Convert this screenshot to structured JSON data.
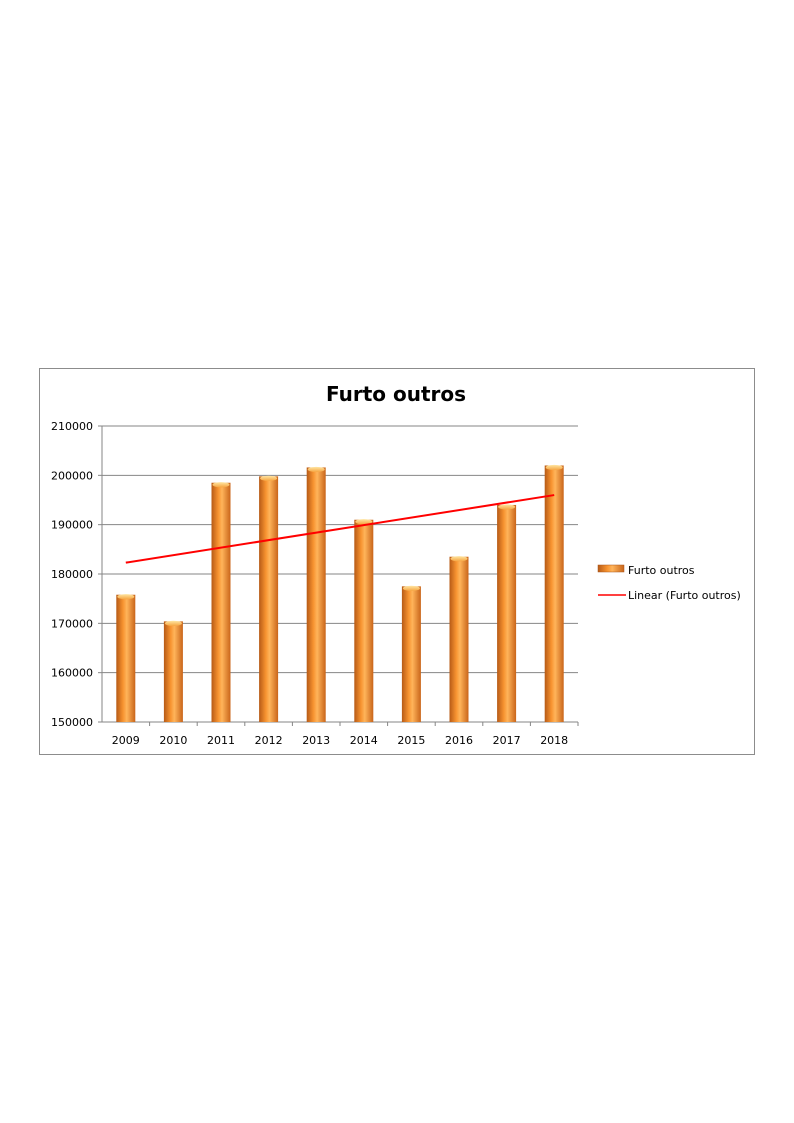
{
  "chart_data": {
    "type": "bar",
    "title": "Furto outros",
    "categories": [
      "2009",
      "2010",
      "2011",
      "2012",
      "2013",
      "2014",
      "2015",
      "2016",
      "2017",
      "2018"
    ],
    "series": [
      {
        "name": "Furto outros",
        "values": [
          175800,
          170400,
          198500,
          199800,
          201600,
          191000,
          177500,
          183500,
          194000,
          202000
        ]
      }
    ],
    "trendline": {
      "name": "Linear (Furto outros)",
      "type": "linear",
      "start": 182300,
      "end": 196000
    },
    "ylim": [
      150000,
      210000
    ],
    "yticks": [
      "150000",
      "160000",
      "170000",
      "180000",
      "190000",
      "200000",
      "210000"
    ],
    "grid": true,
    "legend_position": "right",
    "colors": {
      "bar": "#f79330",
      "bar_light": "#ffb45a",
      "bar_dark": "#c9651a",
      "trendline": "#ff0000",
      "grid": "#868686"
    }
  }
}
